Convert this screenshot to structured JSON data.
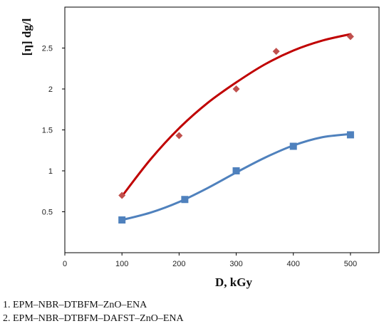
{
  "chart_data": {
    "type": "scatter",
    "xlabel": "D, kGy",
    "ylabel": "[η] dg/l",
    "xlim": [
      0,
      550
    ],
    "ylim": [
      0,
      3.0
    ],
    "xticks": [
      0,
      100,
      200,
      300,
      400,
      500
    ],
    "yticks": [
      0.5,
      1,
      1.5,
      2,
      2.5
    ],
    "xtick_labels": [
      "0",
      "100",
      "200",
      "300",
      "400",
      "500"
    ],
    "ytick_labels": [
      "0.5",
      "1",
      "1.5",
      "2",
      "2.5"
    ],
    "grid": false,
    "series": [
      {
        "color": "#c0504d",
        "fit_color": "#c00000",
        "marker": "diamond",
        "x": [
          100,
          200,
          300,
          370,
          500
        ],
        "y": [
          0.7,
          1.43,
          2.0,
          2.46,
          2.64
        ],
        "fit": [
          [
            100,
            0.69
          ],
          [
            150,
            1.14
          ],
          [
            200,
            1.52
          ],
          [
            250,
            1.83
          ],
          [
            300,
            2.08
          ],
          [
            350,
            2.3
          ],
          [
            400,
            2.47
          ],
          [
            450,
            2.59
          ],
          [
            500,
            2.67
          ]
        ]
      },
      {
        "color": "#4f81bd",
        "fit_color": "#4f81bd",
        "marker": "square",
        "x": [
          100,
          210,
          300,
          400,
          500
        ],
        "y": [
          0.4,
          0.65,
          1.0,
          1.3,
          1.44
        ],
        "fit": [
          [
            100,
            0.4
          ],
          [
            150,
            0.49
          ],
          [
            200,
            0.62
          ],
          [
            250,
            0.79
          ],
          [
            300,
            0.98
          ],
          [
            350,
            1.16
          ],
          [
            400,
            1.31
          ],
          [
            450,
            1.41
          ],
          [
            500,
            1.45
          ]
        ]
      }
    ]
  },
  "legend": {
    "line1": "1. EPM–NBR–DTBFM–ZnO–ENA",
    "line2": "2. EPM–NBR–DTBFM–DAFST–ZnO–ENA"
  }
}
